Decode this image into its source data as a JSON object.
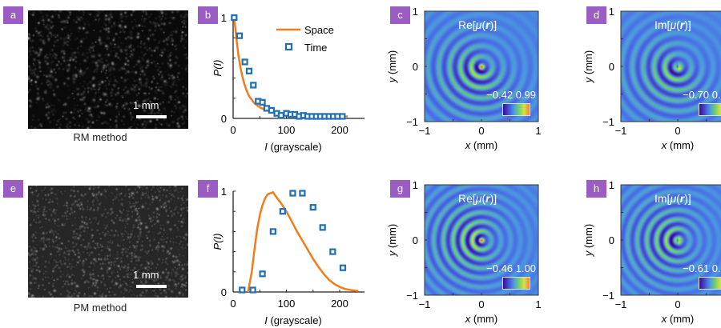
{
  "panels": {
    "a": {
      "label": "a",
      "caption": "RM method",
      "scale_bar": "1 mm"
    },
    "e": {
      "label": "e",
      "caption": "PM method",
      "scale_bar": "1 mm"
    }
  },
  "chart_data": [
    {
      "id": "b",
      "label": "b",
      "type": "line+scatter",
      "xlabel_italic": "I",
      "xlabel": " (grayscale)",
      "ylabel": "P(I)",
      "xlim": [
        0,
        250
      ],
      "ylim": [
        0,
        1
      ],
      "xticks": [
        "0",
        "100",
        "200"
      ],
      "yticks": [
        "0",
        "1"
      ],
      "legend": {
        "position": "top-right",
        "entries": [
          "Space",
          "Time"
        ]
      },
      "series": [
        {
          "name": "Space",
          "kind": "line",
          "color": "#f07d1a",
          "x": [
            2,
            5,
            10,
            15,
            20,
            25,
            30,
            40,
            50,
            60,
            70,
            80,
            100,
            120,
            140,
            160,
            180,
            200,
            215
          ],
          "y": [
            1.0,
            0.85,
            0.62,
            0.47,
            0.36,
            0.28,
            0.22,
            0.15,
            0.11,
            0.085,
            0.07,
            0.055,
            0.04,
            0.033,
            0.028,
            0.025,
            0.022,
            0.02,
            0.02
          ]
        },
        {
          "name": "Time",
          "kind": "scatter",
          "color": "#1f6fb2",
          "x": [
            2,
            12,
            22,
            30,
            38,
            47,
            55,
            63,
            72,
            82,
            90,
            100,
            108,
            116,
            124,
            132,
            140,
            148,
            156,
            164,
            172,
            180,
            188,
            196,
            205
          ],
          "y": [
            1.0,
            0.82,
            0.56,
            0.47,
            0.33,
            0.17,
            0.16,
            0.1,
            0.08,
            0.05,
            0.03,
            0.05,
            0.04,
            0.04,
            0.02,
            0.03,
            0.02,
            0.02,
            0.02,
            0.02,
            0.02,
            0.02,
            0.02,
            0.02,
            0.02
          ]
        }
      ]
    },
    {
      "id": "f",
      "label": "f",
      "type": "line+scatter",
      "xlabel_italic": "I",
      "xlabel": " (grayscale)",
      "ylabel": "P(I)",
      "xlim": [
        0,
        250
      ],
      "ylim": [
        0,
        1
      ],
      "xticks": [
        "0",
        "100",
        "200"
      ],
      "yticks": [
        "0",
        "1"
      ],
      "series": [
        {
          "name": "Space",
          "kind": "line",
          "color": "#f07d1a",
          "x": [
            28,
            35,
            40,
            45,
            50,
            55,
            60,
            65,
            70,
            75,
            80,
            90,
            100,
            110,
            120,
            130,
            140,
            150,
            160,
            170,
            180,
            190,
            200,
            210,
            220,
            235
          ],
          "y": [
            0,
            0.2,
            0.42,
            0.62,
            0.76,
            0.86,
            0.93,
            0.97,
            0.98,
            0.99,
            0.95,
            0.88,
            0.8,
            0.7,
            0.6,
            0.51,
            0.42,
            0.33,
            0.25,
            0.18,
            0.12,
            0.08,
            0.05,
            0.03,
            0.02,
            0.01
          ]
        },
        {
          "name": "Time",
          "kind": "scatter",
          "color": "#1f6fb2",
          "x": [
            17,
            37,
            55,
            75,
            93,
            112,
            130,
            150,
            168,
            187,
            206
          ],
          "y": [
            0.02,
            0.02,
            0.18,
            0.6,
            0.8,
            0.98,
            0.98,
            0.84,
            0.64,
            0.4,
            0.24
          ]
        }
      ]
    },
    {
      "id": "c",
      "label": "c",
      "type": "heatmap",
      "title_prefix": "Re[",
      "title_mu": "μ",
      "title_open": "(",
      "title_r": "r",
      "title_close": ")]",
      "xlabel_italic": "x",
      "xlabel": " (mm)",
      "ylabel_italic": "y",
      "ylabel": " (mm)",
      "xticks": [
        "−1",
        "0",
        "1"
      ],
      "yticks": [
        "1",
        "0",
        "−1"
      ],
      "xlim": [
        -1,
        1
      ],
      "ylim": [
        -1,
        1
      ],
      "colorbar": {
        "min": "−0.42",
        "max": "0.99"
      }
    },
    {
      "id": "d",
      "label": "d",
      "type": "heatmap",
      "title_prefix": "Im[",
      "title_mu": "μ",
      "title_open": "(",
      "title_r": "r",
      "title_close": ")]",
      "xlabel_italic": "x",
      "xlabel": " (mm)",
      "ylabel_italic": "y",
      "ylabel": " (mm)",
      "xticks": [
        "−1",
        "0",
        "1"
      ],
      "yticks": [
        "1",
        "0",
        "−1"
      ],
      "xlim": [
        -1,
        1
      ],
      "ylim": [
        -1,
        1
      ],
      "colorbar": {
        "min": "−0.70",
        "max": "0.70"
      }
    },
    {
      "id": "g",
      "label": "g",
      "type": "heatmap",
      "title_prefix": "Re[",
      "title_mu": "μ",
      "title_open": "(",
      "title_r": "r",
      "title_close": ")]",
      "xlabel_italic": "x",
      "xlabel": " (mm)",
      "ylabel_italic": "y",
      "ylabel": " (mm)",
      "xticks": [
        "−1",
        "0",
        "1"
      ],
      "yticks": [
        "1",
        "0",
        "−1"
      ],
      "xlim": [
        -1,
        1
      ],
      "ylim": [
        -1,
        1
      ],
      "colorbar": {
        "min": "−0.46",
        "max": "1.00"
      }
    },
    {
      "id": "h",
      "label": "h",
      "type": "heatmap",
      "title_prefix": "Im[",
      "title_mu": "μ",
      "title_open": "(",
      "title_r": "r",
      "title_close": ")]",
      "xlabel_italic": "x",
      "xlabel": " (mm)",
      "ylabel_italic": "y",
      "ylabel": " (mm)",
      "xticks": [
        "−1",
        "0",
        "1"
      ],
      "yticks": [
        "1",
        "0",
        "−1"
      ],
      "xlim": [
        -1,
        1
      ],
      "ylim": [
        -1,
        1
      ],
      "colorbar": {
        "min": "−0.61",
        "max": "0.72"
      }
    }
  ]
}
